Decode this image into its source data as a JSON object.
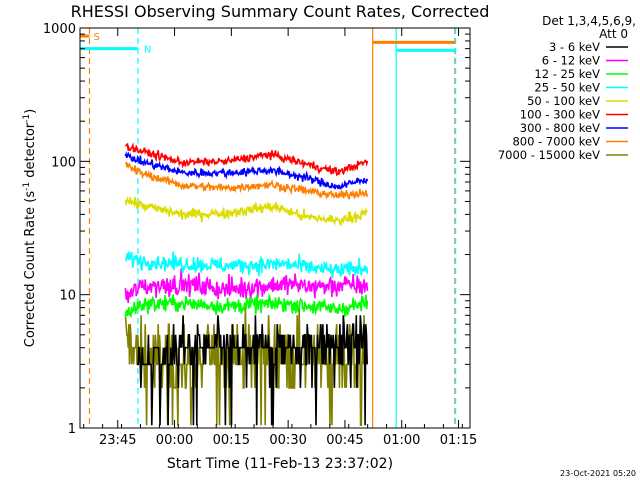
{
  "chart_data": {
    "type": "line",
    "title": "RHESSI Observing Summary Count Rates, Corrected",
    "xlabel": "Start Time (11-Feb-13 23:37:02)",
    "ylabel_main": "Corrected Count Rate (s",
    "ylabel_sup1": "-1",
    "ylabel_mid": " detector",
    "ylabel_sup2": "-1",
    "ylabel_end": ")",
    "yscale": "log",
    "ylim": [
      1,
      1000
    ],
    "xlim_minutes": [
      -2,
      101
    ],
    "x_ticks": [
      {
        "label": "23:45",
        "minute": 7.97
      },
      {
        "label": "00:00",
        "minute": 22.97
      },
      {
        "label": "00:15",
        "minute": 37.97
      },
      {
        "label": "00:30",
        "minute": 52.97
      },
      {
        "label": "00:45",
        "minute": 67.97
      },
      {
        "label": "01:00",
        "minute": 82.97
      },
      {
        "label": "01:15",
        "minute": 97.97
      }
    ],
    "y_ticks": [
      {
        "label": "1",
        "value": 1
      },
      {
        "label": "10",
        "value": 10
      },
      {
        "label": "100",
        "value": 100
      },
      {
        "label": "1000",
        "value": 1000
      }
    ],
    "legend_header": [
      "Det 1,3,4,5,6,9,",
      "Att 0"
    ],
    "series": [
      {
        "name": "3 - 6 keV",
        "color": "#000000",
        "start": 13,
        "end": 74,
        "base": 3.6,
        "trend": [
          [
            13,
            3.0
          ],
          [
            25,
            4.2
          ],
          [
            37,
            3.9
          ],
          [
            52,
            4.2
          ],
          [
            66,
            4.3
          ],
          [
            74,
            4.6
          ]
        ],
        "noise": 0.18
      },
      {
        "name": "6 - 12 keV",
        "color": "#ff00ff",
        "start": 10,
        "end": 74,
        "base": 11,
        "trend": [
          [
            10,
            9.5
          ],
          [
            14,
            11.5
          ],
          [
            25,
            12
          ],
          [
            37,
            11
          ],
          [
            52,
            12
          ],
          [
            60,
            11.5
          ],
          [
            74,
            11.8
          ]
        ],
        "noise": 0.08
      },
      {
        "name": "12 - 25 keV",
        "color": "#00ff00",
        "start": 10,
        "end": 74,
        "base": 8,
        "trend": [
          [
            10,
            7
          ],
          [
            14,
            8.5
          ],
          [
            25,
            8.6
          ],
          [
            37,
            8.2
          ],
          [
            52,
            8.6
          ],
          [
            66,
            7.8
          ],
          [
            74,
            8.6
          ]
        ],
        "noise": 0.06
      },
      {
        "name": "25 - 50 keV",
        "color": "#00ffff",
        "start": 10,
        "end": 74,
        "base": 18,
        "trend": [
          [
            10,
            19
          ],
          [
            14,
            18
          ],
          [
            25,
            17
          ],
          [
            37,
            16.5
          ],
          [
            52,
            17
          ],
          [
            66,
            15
          ],
          [
            74,
            16
          ]
        ],
        "noise": 0.06
      },
      {
        "name": "50 - 100 keV",
        "color": "#dddd00",
        "start": 10,
        "end": 74,
        "base": 42,
        "trend": [
          [
            10,
            52
          ],
          [
            14,
            47
          ],
          [
            25,
            40
          ],
          [
            37,
            41
          ],
          [
            49,
            46
          ],
          [
            58,
            38
          ],
          [
            66,
            36
          ],
          [
            74,
            41
          ]
        ],
        "noise": 0.04
      },
      {
        "name": "100 - 300 keV",
        "color": "#ff0000",
        "start": 10,
        "end": 74,
        "base": 95,
        "trend": [
          [
            10,
            130
          ],
          [
            14,
            120
          ],
          [
            25,
            98
          ],
          [
            37,
            100
          ],
          [
            48,
            113
          ],
          [
            58,
            95
          ],
          [
            66,
            83
          ],
          [
            74,
            100
          ]
        ],
        "noise": 0.03
      },
      {
        "name": "300 - 800 keV",
        "color": "#0000ff",
        "start": 10,
        "end": 74,
        "base": 82,
        "trend": [
          [
            10,
            110
          ],
          [
            14,
            100
          ],
          [
            25,
            82
          ],
          [
            37,
            82
          ],
          [
            48,
            86
          ],
          [
            58,
            75
          ],
          [
            66,
            64
          ],
          [
            74,
            74
          ]
        ],
        "noise": 0.03
      },
      {
        "name": "800 - 7000 keV",
        "color": "#ff8000",
        "start": 10,
        "end": 74,
        "base": 68,
        "trend": [
          [
            10,
            95
          ],
          [
            14,
            82
          ],
          [
            25,
            66
          ],
          [
            37,
            63
          ],
          [
            48,
            67
          ],
          [
            58,
            60
          ],
          [
            66,
            55
          ],
          [
            74,
            59
          ]
        ],
        "noise": 0.03
      },
      {
        "name": "7000 - 15000 keV",
        "color": "#808000",
        "start": 10,
        "end": 74,
        "base": 3.6,
        "trend": [
          [
            10,
            5.0
          ],
          [
            14,
            3.5
          ],
          [
            25,
            3.0
          ],
          [
            37,
            3.8
          ],
          [
            52,
            3.8
          ],
          [
            66,
            3.4
          ],
          [
            74,
            3.6
          ]
        ],
        "noise": 0.25
      }
    ],
    "markers": [
      {
        "label": "S",
        "color": "#ff8000",
        "y_value": 870,
        "x_start": -2,
        "x_end": 0.5
      },
      {
        "label": "N",
        "color": "#00ffff",
        "y_value": 700,
        "x_start": -2,
        "x_end": 13.3
      }
    ],
    "vlines": [
      {
        "minute": 0.5,
        "color": "#ff8000",
        "dashed": true
      },
      {
        "minute": 13.3,
        "color": "#00ffff",
        "dashed": true
      },
      {
        "minute": 75.3,
        "color": "#ff8000",
        "dashed": false
      },
      {
        "minute": 81.5,
        "color": "#00ffff",
        "dashed": false
      },
      {
        "minute": 97.0,
        "color": "#ff8000",
        "dashed": true
      },
      {
        "minute": 97.2,
        "color": "#00ffff",
        "dashed": true
      }
    ],
    "hbars_after": [
      {
        "color": "#ff8000",
        "y_value": 780,
        "x_start": 75.3,
        "x_end": 97.0
      },
      {
        "color": "#00ffff",
        "y_value": 680,
        "x_start": 81.5,
        "x_end": 97.2
      }
    ],
    "footer": "23-Oct-2021 05:20"
  }
}
